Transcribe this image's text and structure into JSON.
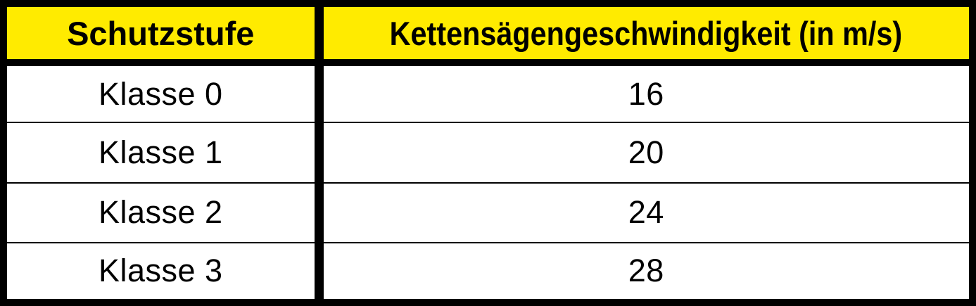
{
  "colors": {
    "header_bg": "#FFEB00",
    "border_color": "#000000",
    "row_bg": "#FFFFFF",
    "text_color": "#000000"
  },
  "table": {
    "columns": [
      {
        "label": "Schutzstufe"
      },
      {
        "label": "Kettensägengeschwindigkeit (in m/s)"
      }
    ],
    "rows": [
      {
        "klasse": "Klasse 0",
        "speed": "16"
      },
      {
        "klasse": "Klasse 1",
        "speed": "20"
      },
      {
        "klasse": "Klasse 2",
        "speed": "24"
      },
      {
        "klasse": "Klasse 3",
        "speed": "28"
      }
    ]
  }
}
